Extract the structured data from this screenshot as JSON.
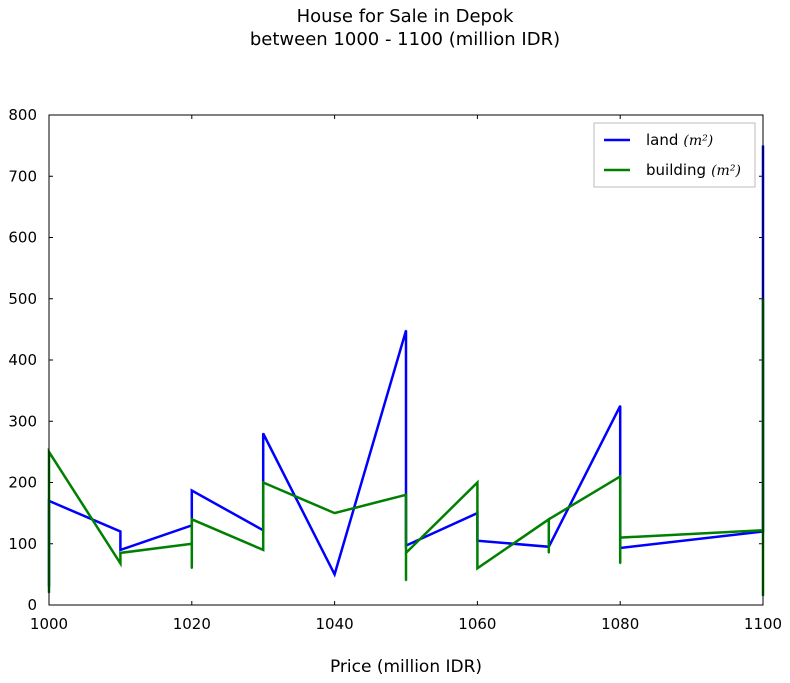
{
  "chart_data": {
    "type": "line",
    "title": "House for Sale in Depok",
    "subtitle": "between 1000 - 1100 (million IDR)",
    "xlabel": "Price (million IDR)",
    "ylabel": "",
    "xlim": [
      1000,
      1100
    ],
    "ylim": [
      0,
      800
    ],
    "xticks": [
      1000,
      1020,
      1040,
      1060,
      1080,
      1100
    ],
    "yticks": [
      0,
      100,
      200,
      300,
      400,
      500,
      600,
      700,
      800
    ],
    "legend_position": "upper right",
    "grid": false,
    "series": [
      {
        "name": "land",
        "name_math": "(m²)",
        "color": "#0000ff",
        "points": [
          [
            1000,
            30
          ],
          [
            1000,
            170
          ],
          [
            1010,
            120
          ],
          [
            1010,
            90
          ],
          [
            1020,
            130
          ],
          [
            1020,
            187
          ],
          [
            1030,
            122
          ],
          [
            1030,
            280
          ],
          [
            1040,
            50
          ],
          [
            1050,
            448
          ],
          [
            1050,
            97
          ],
          [
            1060,
            150
          ],
          [
            1060,
            105
          ],
          [
            1070,
            95
          ],
          [
            1080,
            325
          ],
          [
            1080,
            93
          ],
          [
            1100,
            120
          ],
          [
            1100,
            750
          ]
        ]
      },
      {
        "name": "building",
        "name_math": "(m²)",
        "color": "#008000",
        "points": [
          [
            1000,
            20
          ],
          [
            1000,
            250
          ],
          [
            1010,
            68
          ],
          [
            1010,
            85
          ],
          [
            1020,
            100
          ],
          [
            1020,
            60
          ],
          [
            1020,
            140
          ],
          [
            1030,
            90
          ],
          [
            1030,
            200
          ],
          [
            1040,
            150
          ],
          [
            1050,
            180
          ],
          [
            1050,
            40
          ],
          [
            1050,
            85
          ],
          [
            1060,
            200
          ],
          [
            1060,
            60
          ],
          [
            1070,
            140
          ],
          [
            1070,
            85
          ],
          [
            1070,
            140
          ],
          [
            1080,
            210
          ],
          [
            1080,
            68
          ],
          [
            1080,
            110
          ],
          [
            1100,
            122
          ],
          [
            1100,
            15
          ],
          [
            1100,
            500
          ]
        ]
      }
    ]
  }
}
